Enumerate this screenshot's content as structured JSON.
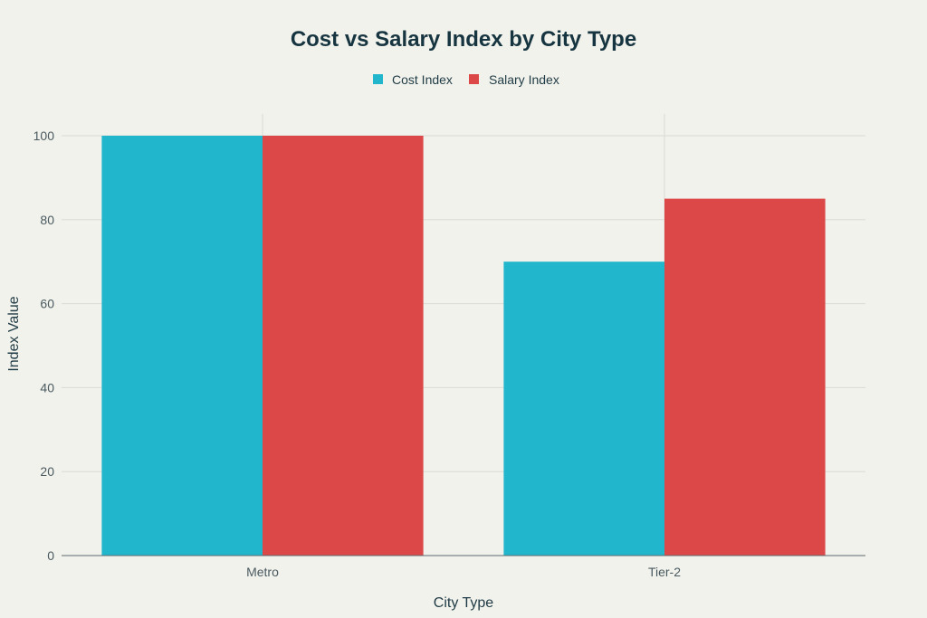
{
  "chart_data": {
    "type": "bar",
    "title": "Cost vs Salary Index by City Type",
    "xlabel": "City Type",
    "ylabel": "Index Value",
    "categories": [
      "Metro",
      "Tier-2"
    ],
    "series": [
      {
        "name": "Cost Index",
        "values": [
          100,
          70
        ],
        "color": "#21b6cc"
      },
      {
        "name": "Salary Index",
        "values": [
          100,
          85
        ],
        "color": "#dc4748"
      }
    ],
    "ylim": [
      0,
      105
    ],
    "yticks": [
      0,
      20,
      40,
      60,
      80,
      100
    ],
    "grid": true,
    "legend_position": "top-center"
  }
}
